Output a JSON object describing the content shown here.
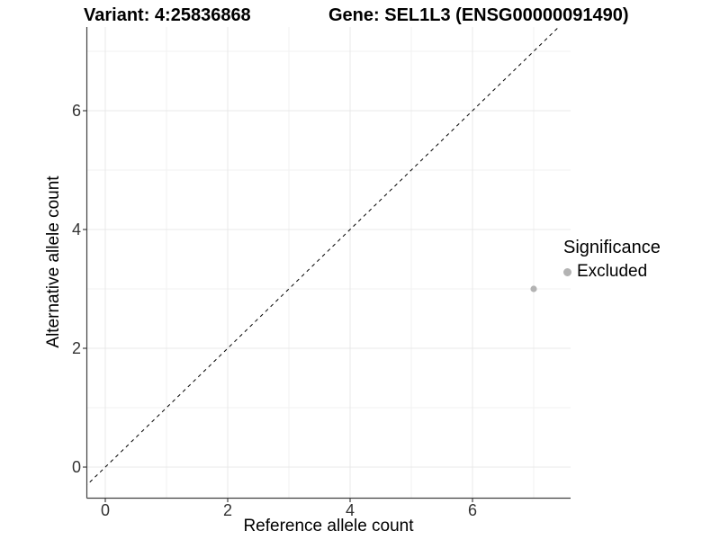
{
  "chart_data": {
    "type": "scatter",
    "title_left": "Variant: 4:25836868",
    "title_right": "Gene: SEL1L3 (ENSG00000091490)",
    "xlabel": "Reference allele count",
    "ylabel": "Alternative allele count",
    "xticks": [
      0,
      2,
      4,
      6
    ],
    "yticks": [
      0,
      2,
      4,
      6
    ],
    "minor_xticks": [
      1,
      3,
      5,
      7
    ],
    "minor_yticks": [
      1,
      3,
      5,
      7
    ],
    "xlim": [
      -0.3,
      7.6
    ],
    "ylim": [
      -0.52,
      7.41
    ],
    "grid": true,
    "points": [
      {
        "x": 7,
        "y": 3,
        "significance": "Excluded"
      }
    ],
    "abline": {
      "slope": 1,
      "intercept": 0,
      "style": "dashed"
    },
    "legend": {
      "title": "Significance",
      "position": "right",
      "entries": [
        {
          "label": "Excluded",
          "color": "#b3b3b3"
        }
      ]
    },
    "colors": {
      "point": "#b3b3b3",
      "grid_major": "#e8e8e8",
      "grid_minor": "#f2f2f2",
      "axis_line": "#404040",
      "tick_text": "#333333",
      "abline": "#000000",
      "background": "#ffffff"
    }
  }
}
